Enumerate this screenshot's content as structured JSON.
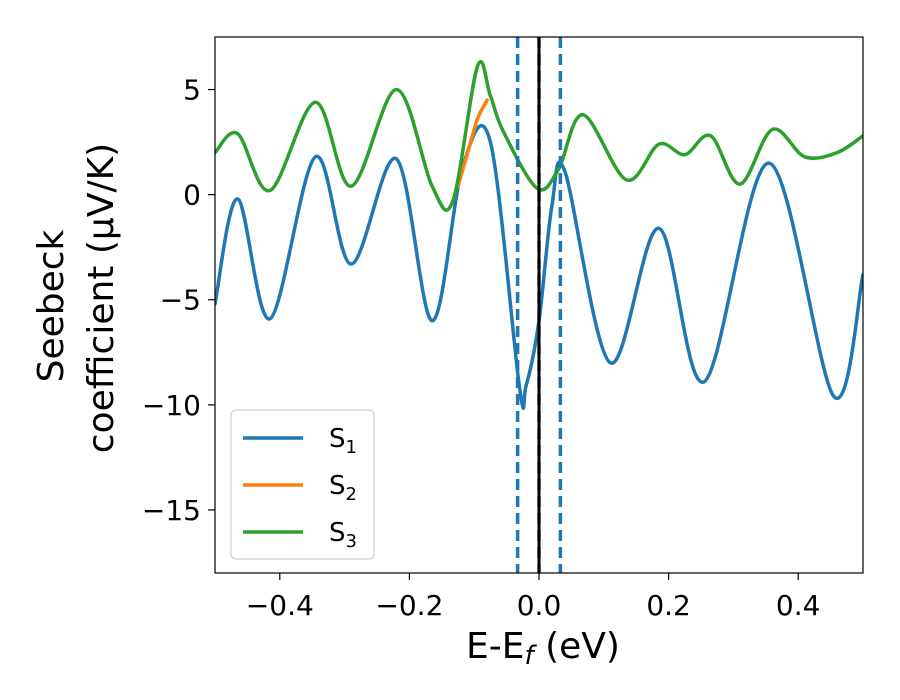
{
  "chart_data": {
    "type": "line",
    "xlabel": "E-E",
    "xlabel_sub": "f",
    "xlabel_unit": "(eV)",
    "ylabel_line1": "Seebeck",
    "ylabel_line2": "coefficient  (μV/K)",
    "xlim": [
      -0.5,
      0.5
    ],
    "ylim": [
      -18,
      7.5
    ],
    "xticks": [
      -0.4,
      -0.2,
      0.0,
      0.2,
      0.4
    ],
    "xtick_labels": [
      "−0.4",
      "−0.2",
      "0.0",
      "0.2",
      "0.4"
    ],
    "yticks": [
      5,
      0,
      -5,
      -10,
      -15
    ],
    "ytick_labels": [
      "5",
      "0",
      "−5",
      "−10",
      "−15"
    ],
    "legend_position": "lower-left",
    "vlines": [
      {
        "x": -0.033,
        "style": "dashed",
        "color": "#1f77b4"
      },
      {
        "x": 0.0,
        "style": "dashed",
        "color": "#1f77b4"
      },
      {
        "x": 0.033,
        "style": "dashed",
        "color": "#1f77b4"
      },
      {
        "x": 0.0,
        "style": "solid",
        "color": "#000000"
      }
    ],
    "series": [
      {
        "name": "S",
        "sub": "1",
        "color": "#1f77b4",
        "x": [
          -0.5,
          -0.465,
          -0.415,
          -0.345,
          -0.29,
          -0.22,
          -0.165,
          -0.118,
          -0.075,
          -0.03,
          -0.02,
          0.0,
          0.02,
          0.04,
          0.11,
          0.185,
          0.255,
          0.355,
          0.455,
          0.5
        ],
        "y": [
          -5.2,
          -0.2,
          -5.9,
          1.8,
          -3.3,
          1.7,
          -6.0,
          1.3,
          2.5,
          -9.2,
          -9.1,
          -6.0,
          -0.5,
          1.1,
          -8.0,
          -1.6,
          -8.9,
          1.5,
          -9.6,
          -3.8
        ]
      },
      {
        "name": "S",
        "sub": "2",
        "color": "#ff7f0e",
        "x": [
          -0.125,
          -0.11,
          -0.095,
          -0.08
        ],
        "y": [
          0.4,
          2.0,
          3.6,
          4.5
        ]
      },
      {
        "name": "S",
        "sub": "3",
        "color": "#2ca02c",
        "x": [
          -0.5,
          -0.465,
          -0.415,
          -0.345,
          -0.29,
          -0.22,
          -0.165,
          -0.133,
          -0.095,
          -0.075,
          -0.055,
          -0.003,
          0.03,
          0.068,
          0.135,
          0.185,
          0.225,
          0.265,
          0.31,
          0.36,
          0.41,
          0.46,
          0.5
        ],
        "y": [
          2.0,
          2.9,
          0.2,
          4.4,
          0.4,
          5.0,
          0.4,
          -0.3,
          6.1,
          4.7,
          3.0,
          0.3,
          1.2,
          3.8,
          0.7,
          2.4,
          1.9,
          2.8,
          0.5,
          3.1,
          1.8,
          2.0,
          2.8
        ]
      }
    ]
  }
}
